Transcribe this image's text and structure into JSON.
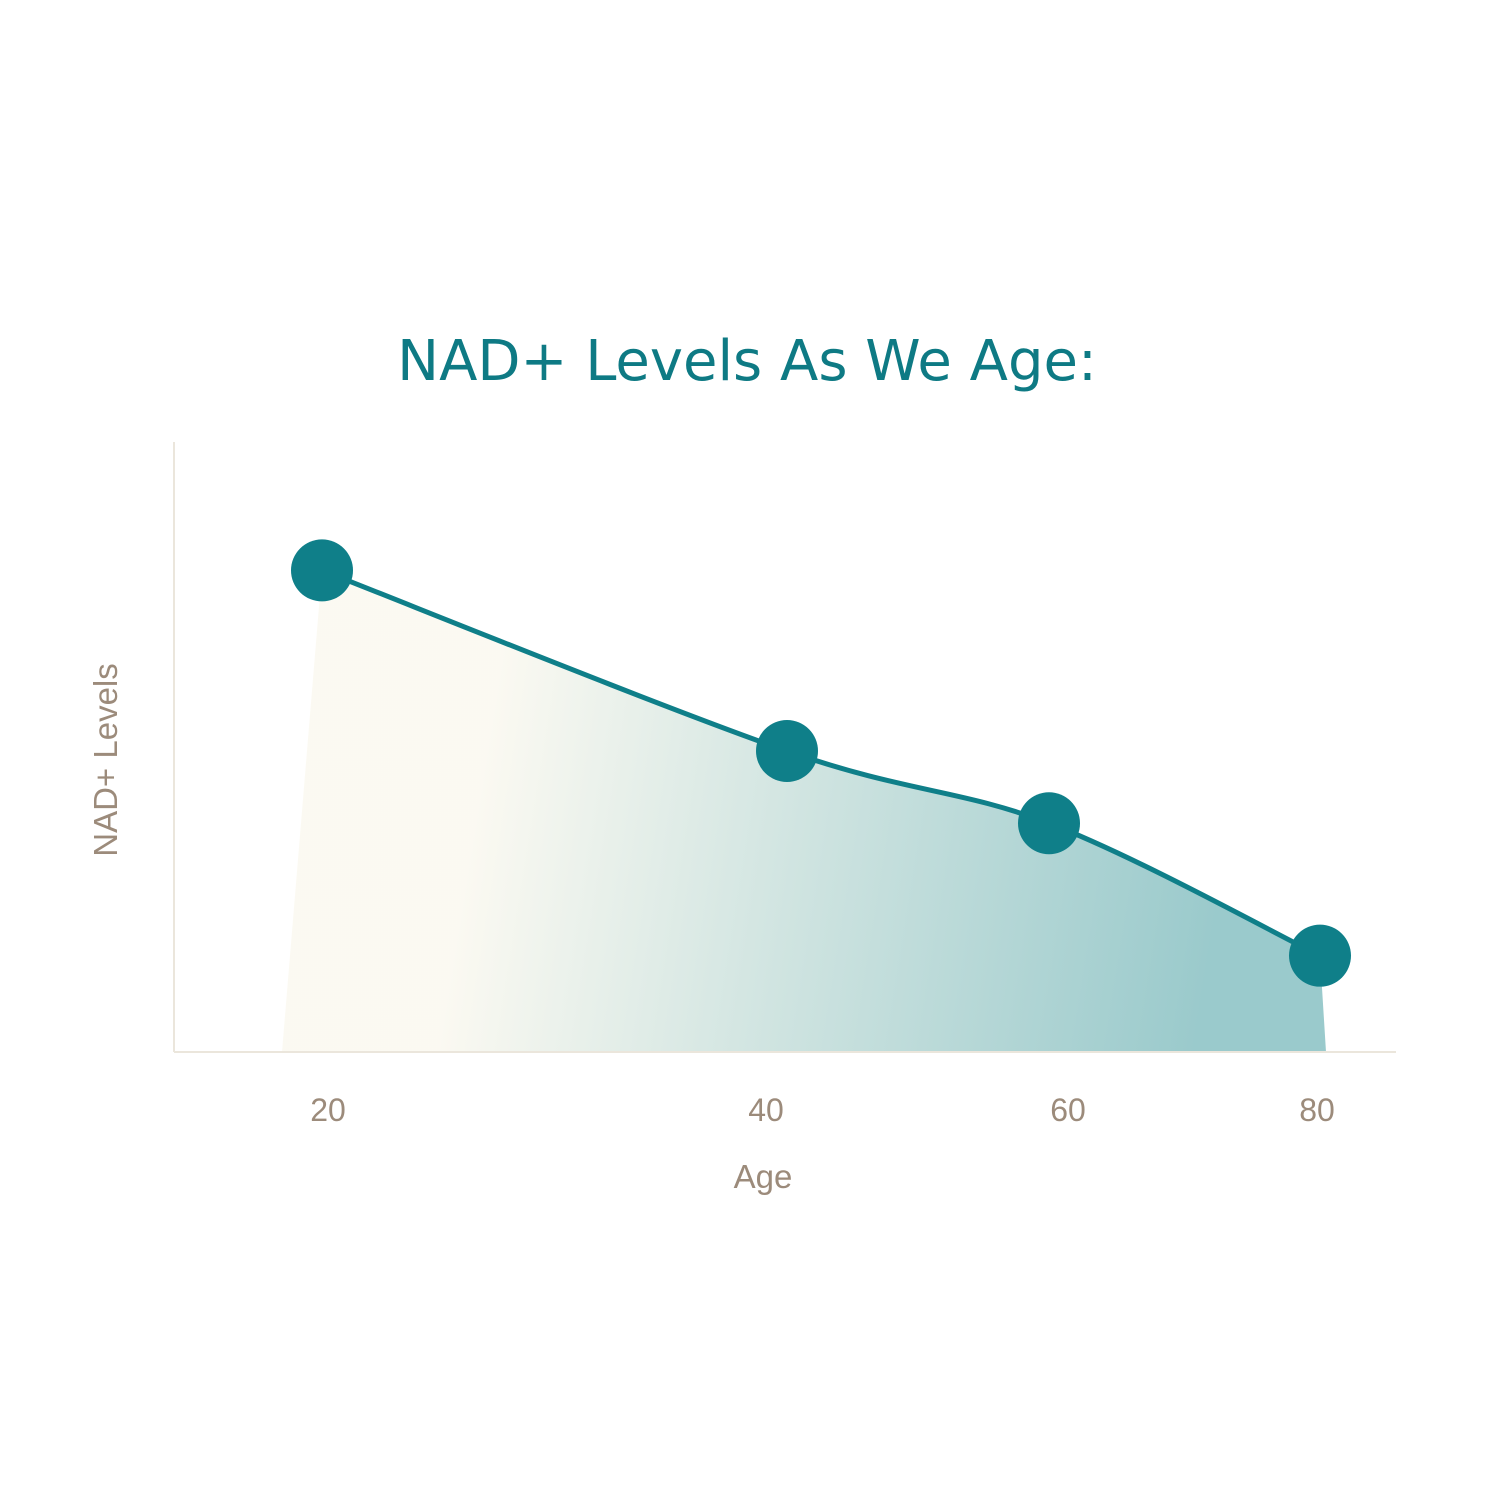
{
  "colors": {
    "accent": "#0f7f89",
    "title": "#0e7a84",
    "label": "#9c8b7b",
    "axis_line": "#ebe6dc",
    "fill_light": "#fbf9f1",
    "fill_dark": "#8fc4c6"
  },
  "chart_data": {
    "type": "line",
    "title": "NAD+ Levels As We Age:",
    "xlabel": "Age",
    "ylabel": "NAD+ Levels",
    "x_ticks": [
      "20",
      "40",
      "60",
      "80"
    ],
    "y_ticks": [],
    "y_tick_labels_shown": false,
    "grid": false,
    "legend": "none",
    "area_fill": true,
    "ylim": [
      0,
      100
    ],
    "series": [
      {
        "x": [
          20,
          40,
          60,
          80
        ],
        "y": [
          80,
          50,
          38,
          16
        ]
      }
    ]
  }
}
